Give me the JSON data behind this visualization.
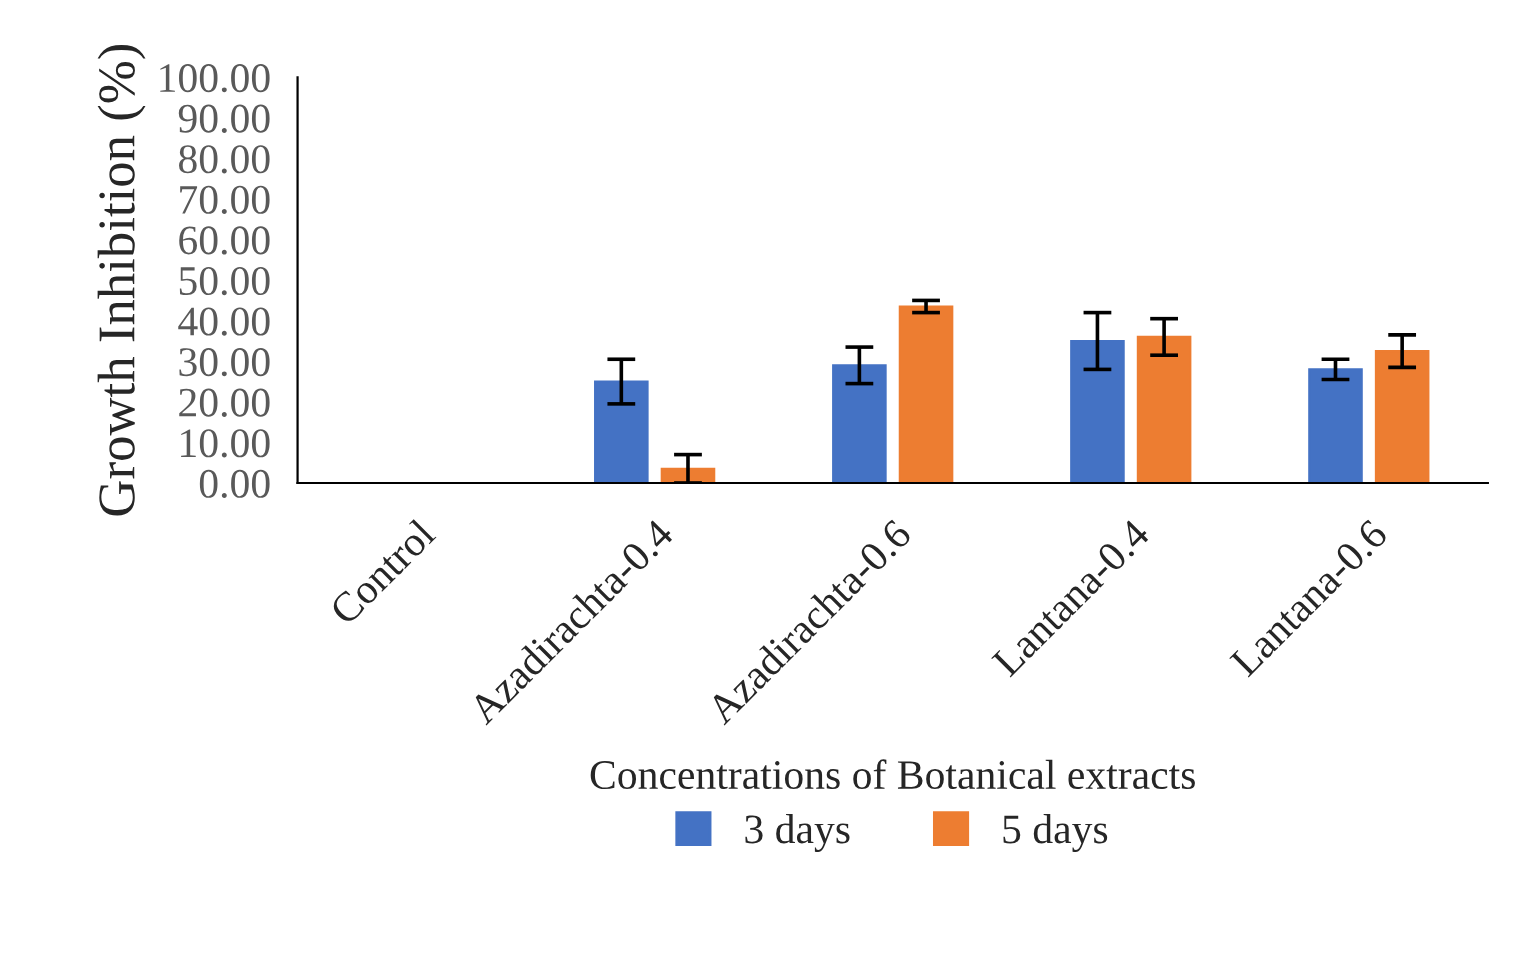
{
  "chart_data": {
    "type": "bar",
    "xlabel": "Concentrations of Botanical extracts",
    "ylabel": "Growth Inhibition (%)",
    "categories": [
      "Control",
      "Azadirachta-0.4",
      "Azadirachta-0.6",
      "Lantana-0.4",
      "Lantana-0.6"
    ],
    "series": [
      {
        "name": "3 days",
        "color": "#4472c4",
        "values": [
          0,
          25,
          29,
          35,
          28
        ],
        "errors": [
          null,
          5.5,
          4.5,
          7,
          2.5
        ]
      },
      {
        "name": "5 days",
        "color": "#ed7d31",
        "values": [
          0,
          3.5,
          43.5,
          36,
          32.5
        ],
        "errors": [
          null,
          3.5,
          1.5,
          4.5,
          4
        ]
      }
    ],
    "ylim": [
      0,
      100
    ],
    "yticks": [
      {
        "value": 0,
        "label": "0.00"
      },
      {
        "value": 10,
        "label": "10.00"
      },
      {
        "value": 20,
        "label": "20.00"
      },
      {
        "value": 30,
        "label": "30.00"
      },
      {
        "value": 40,
        "label": "40.00"
      },
      {
        "value": 50,
        "label": "50.00"
      },
      {
        "value": 60,
        "label": "60.00"
      },
      {
        "value": 70,
        "label": "70.00"
      },
      {
        "value": 80,
        "label": "80.00"
      },
      {
        "value": 90,
        "label": "90.00"
      },
      {
        "value": 100,
        "label": "100.00"
      }
    ],
    "grid": false,
    "legend": "bottom"
  }
}
